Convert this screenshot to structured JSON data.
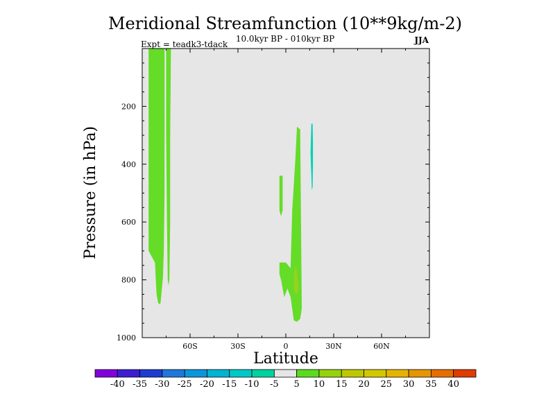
{
  "chart_data": {
    "type": "contour",
    "title": "Meridional Streamfunction (10**9kg/m-2)",
    "subtitle": "10.0kyr BP - 010kyr BP",
    "left_annotation": "Expt = teadk3-tdack",
    "right_annotation": "JJA",
    "xlabel": "Latitude",
    "ylabel": "Pressure (in hPa)",
    "xlim": [
      -90,
      90
    ],
    "ylim": [
      1000,
      0
    ],
    "x_ticks": [
      {
        "value": -60,
        "label": "60S"
      },
      {
        "value": -30,
        "label": "30S"
      },
      {
        "value": 0,
        "label": "0"
      },
      {
        "value": 30,
        "label": "30N"
      },
      {
        "value": 60,
        "label": "60N"
      }
    ],
    "y_ticks": [
      {
        "value": 200,
        "label": "200"
      },
      {
        "value": 400,
        "label": "400"
      },
      {
        "value": 600,
        "label": "600"
      },
      {
        "value": 800,
        "label": "800"
      },
      {
        "value": 1000,
        "label": "1000"
      }
    ],
    "background_color": "#e6e6e6",
    "colorbar": {
      "labels": [
        "-40",
        "-35",
        "-30",
        "-25",
        "-20",
        "-15",
        "-10",
        "-5",
        "5",
        "10",
        "15",
        "20",
        "25",
        "30",
        "35",
        "40"
      ],
      "colors": [
        "#8200dc",
        "#3c1ed2",
        "#1e3cd2",
        "#1e78dc",
        "#0a96dc",
        "#00b4d2",
        "#00c8c8",
        "#00d2a0",
        "#e6e6e6",
        "#5adc1e",
        "#96d20a",
        "#bec800",
        "#d2c800",
        "#e6b400",
        "#e69600",
        "#e66e00",
        "#e13c00"
      ]
    },
    "regions": [
      {
        "level": "5 to 10",
        "color": "#64dc28",
        "points": [
          [
            -86,
            0
          ],
          [
            -76,
            0
          ],
          [
            -76,
            200
          ],
          [
            -76,
            500
          ],
          [
            -76.5,
            700
          ],
          [
            -77,
            790
          ],
          [
            -78,
            850
          ],
          [
            -78.5,
            880
          ],
          [
            -79,
            885
          ],
          [
            -80,
            880
          ],
          [
            -81,
            850
          ],
          [
            -81.5,
            800
          ],
          [
            -82,
            740
          ],
          [
            -84,
            720
          ],
          [
            -86,
            700
          ]
        ]
      },
      {
        "level": "5 to 10",
        "color": "#64dc28",
        "points": [
          [
            -75,
            0
          ],
          [
            -72,
            0
          ],
          [
            -72.5,
            300
          ],
          [
            -72.5,
            600
          ],
          [
            -73,
            800
          ],
          [
            -73.5,
            820
          ],
          [
            -74,
            800
          ],
          [
            -74.5,
            600
          ],
          [
            -75,
            300
          ]
        ]
      },
      {
        "level": "5 to 10",
        "color": "#64dc28",
        "points": [
          [
            -4,
            440
          ],
          [
            -2,
            440
          ],
          [
            -2,
            500
          ],
          [
            -2,
            560
          ],
          [
            -3,
            580
          ],
          [
            -4,
            560
          ]
        ]
      },
      {
        "level": "5 to 10",
        "color": "#64dc28",
        "points": [
          [
            -4,
            740
          ],
          [
            0,
            740
          ],
          [
            3,
            760
          ],
          [
            4,
            560
          ],
          [
            6,
            380
          ],
          [
            7,
            270
          ],
          [
            9,
            280
          ],
          [
            9.5,
            600
          ],
          [
            10,
            900
          ],
          [
            9,
            935
          ],
          [
            7,
            945
          ],
          [
            5,
            940
          ],
          [
            4,
            900
          ],
          [
            3,
            860
          ],
          [
            1,
            830
          ],
          [
            -1,
            860
          ],
          [
            -2,
            830
          ],
          [
            -3,
            800
          ],
          [
            -4,
            780
          ]
        ]
      },
      {
        "level": "10 to 15",
        "color": "#96d21e",
        "points": [
          [
            5,
            780
          ],
          [
            6,
            750
          ],
          [
            7,
            770
          ],
          [
            8,
            820
          ],
          [
            7.5,
            850
          ],
          [
            6,
            850
          ],
          [
            5,
            830
          ]
        ]
      },
      {
        "level": "-10 to -5",
        "color": "#00d2b4",
        "points": [
          [
            16,
            260
          ],
          [
            16.8,
            260
          ],
          [
            17,
            330
          ],
          [
            17,
            400
          ],
          [
            16.8,
            480
          ],
          [
            16.3,
            490
          ],
          [
            16,
            440
          ],
          [
            15.5,
            360
          ]
        ]
      }
    ]
  }
}
